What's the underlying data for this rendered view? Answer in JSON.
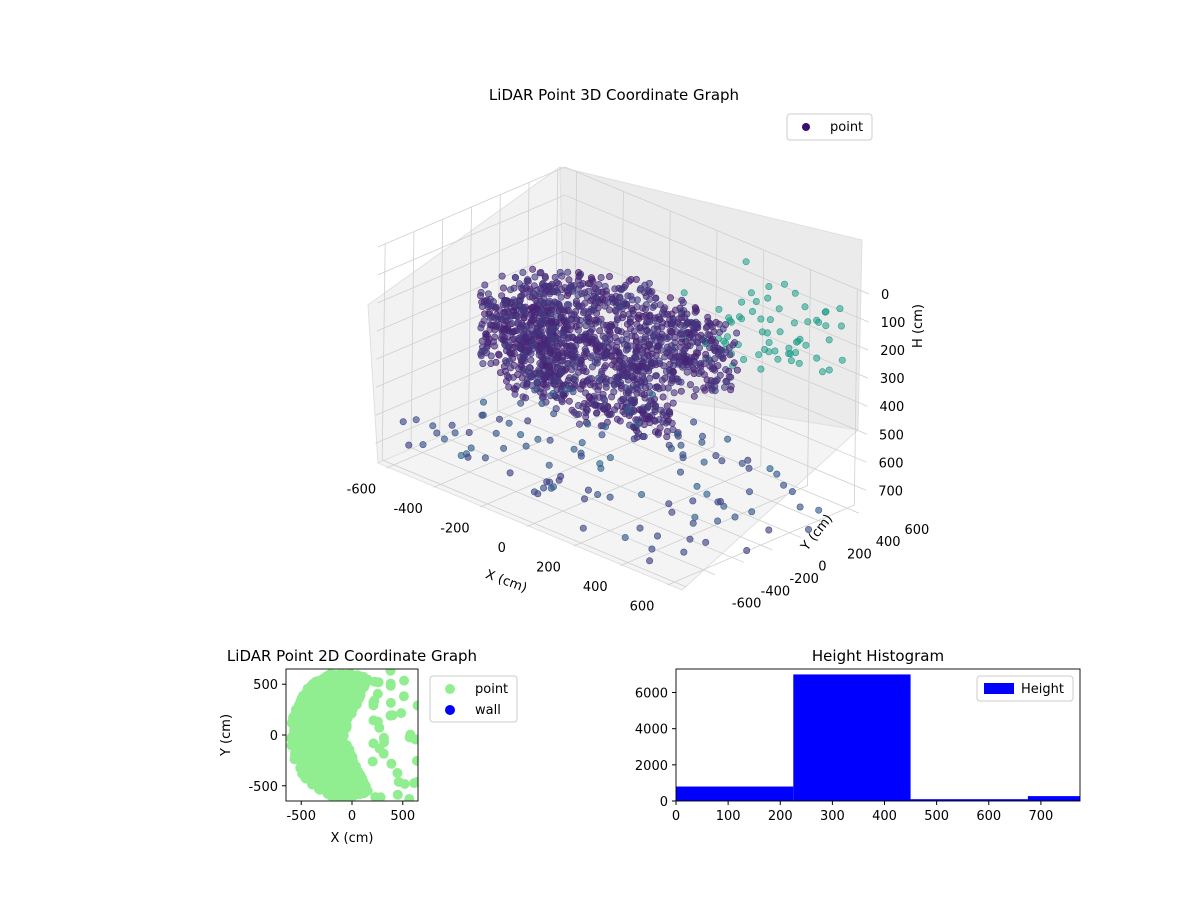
{
  "chart_data": [
    {
      "type": "scatter",
      "title": "LiDAR Point 3D Coordinate Graph",
      "xlabel": "X (cm)",
      "ylabel": "Y (cm)",
      "zlabel": "H (cm)",
      "x_ticks": [
        "-600",
        "-400",
        "-200",
        "0",
        "200",
        "400",
        "600"
      ],
      "y_ticks": [
        "-600",
        "-400",
        "-200",
        "0",
        "200",
        "400",
        "600"
      ],
      "z_ticks": [
        "0",
        "100",
        "200",
        "300",
        "400",
        "500",
        "600",
        "700"
      ],
      "xlim": [
        -650,
        650
      ],
      "ylim": [
        -650,
        650
      ],
      "zlim": [
        0,
        770
      ],
      "z_inverted": true,
      "legend": {
        "placement": "top-right",
        "entries": [
          "point"
        ]
      },
      "series": [
        {
          "name": "point",
          "marker_color": "#3b0f6f",
          "colormap": "viridis-by-height"
        }
      ],
      "grid": true
    },
    {
      "type": "scatter",
      "title": "LiDAR Point 2D Coordinate Graph",
      "xlabel": "X (cm)",
      "ylabel": "Y (cm)",
      "x_ticks": [
        "-500",
        "0",
        "500"
      ],
      "y_ticks": [
        "500",
        "0",
        "-500"
      ],
      "xlim": [
        -650,
        650
      ],
      "ylim": [
        -650,
        650
      ],
      "legend": {
        "placement": "outside-right",
        "entries": [
          "point",
          "wall"
        ]
      },
      "series": [
        {
          "name": "point",
          "color": "#90ee90"
        },
        {
          "name": "wall",
          "color": "#0000ff"
        }
      ]
    },
    {
      "type": "bar",
      "title": "Height Histogram",
      "x_ticks": [
        "0",
        "100",
        "200",
        "300",
        "400",
        "500",
        "600",
        "700"
      ],
      "y_ticks": [
        "0",
        "2000",
        "4000",
        "6000"
      ],
      "xlim": [
        0,
        775
      ],
      "ylim": [
        0,
        7300
      ],
      "bins": [
        [
          0,
          225
        ],
        [
          225,
          450
        ],
        [
          450,
          675
        ],
        [
          675,
          775
        ]
      ],
      "values": [
        800,
        7000,
        100,
        270
      ],
      "legend": {
        "placement": "top-right",
        "entries": [
          "Height"
        ]
      },
      "series": [
        {
          "name": "Height",
          "color": "#0000ff"
        }
      ]
    }
  ]
}
